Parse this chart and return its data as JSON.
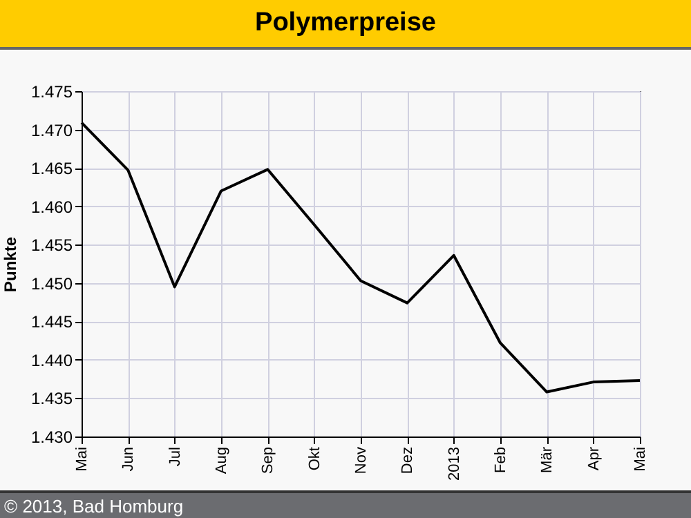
{
  "chart_data": {
    "type": "line",
    "title": "Polymerpreise",
    "ylabel": "Punkte",
    "categories": [
      "Mai",
      "Jun",
      "Jul",
      "Aug",
      "Sep",
      "Okt",
      "Nov",
      "Dez",
      "2013",
      "Feb",
      "Mär",
      "Apr",
      "Mai"
    ],
    "series": [
      {
        "color": "#000000",
        "values": [
          1.4709,
          1.4647,
          1.4495,
          1.462,
          1.4648,
          1.4576,
          1.4503,
          1.4474,
          1.4536,
          1.4422,
          1.4358,
          1.4371,
          1.4373
        ]
      }
    ],
    "ylim": [
      1.43,
      1.475
    ],
    "yticks": [
      {
        "value": 1.43,
        "label": "1.430"
      },
      {
        "value": 1.435,
        "label": "1.435"
      },
      {
        "value": 1.44,
        "label": "1.440"
      },
      {
        "value": 1.445,
        "label": "1.445"
      },
      {
        "value": 1.45,
        "label": "1.450"
      },
      {
        "value": 1.455,
        "label": "1.455"
      },
      {
        "value": 1.46,
        "label": "1.460"
      },
      {
        "value": 1.465,
        "label": "1.465"
      },
      {
        "value": 1.47,
        "label": "1.470"
      },
      {
        "value": 1.475,
        "label": "1.475"
      }
    ],
    "grid": true,
    "marker": "none",
    "line_style": "solid",
    "annotations": [
      "© 2013, Bad Homburg"
    ]
  }
}
